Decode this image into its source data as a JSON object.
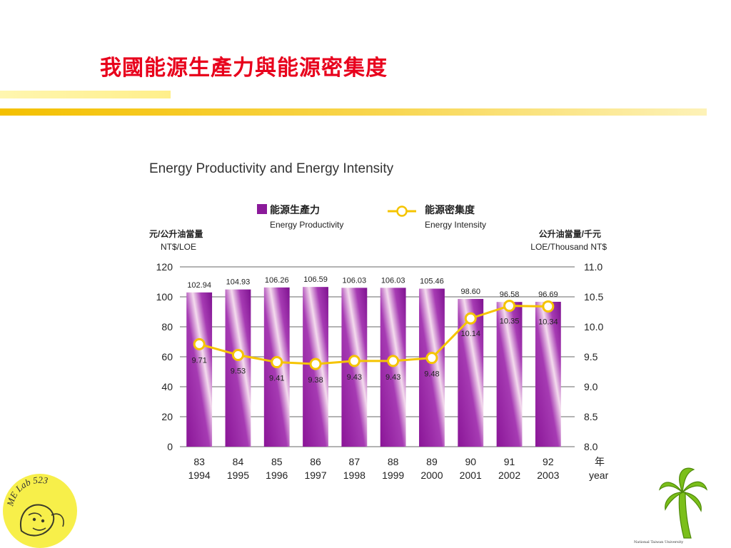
{
  "slide": {
    "title": "我國能源生產力與能源密集度",
    "accent_color": "#e8001c",
    "stripe_color": "#f5c400"
  },
  "chart_data": {
    "type": "bar",
    "title": "Energy Productivity and Energy Intensity",
    "categories_roc": [
      "83",
      "84",
      "85",
      "86",
      "87",
      "88",
      "89",
      "90",
      "91",
      "92"
    ],
    "categories": [
      "1994",
      "1995",
      "1996",
      "1997",
      "1998",
      "1999",
      "2000",
      "2001",
      "2002",
      "2003"
    ],
    "x_unit_cn": "年",
    "x_unit_en": "year",
    "y_left": {
      "label_cn": "元/公升油當量",
      "label_en": "NT$/LOE",
      "ylim": [
        0,
        120
      ],
      "ticks": [
        "0",
        "20",
        "40",
        "60",
        "80",
        "100",
        "120"
      ]
    },
    "y_right": {
      "label_cn": "公升油當量/千元",
      "label_en": "LOE/Thousand NT$",
      "ylim": [
        8.0,
        11.0
      ],
      "ticks": [
        "8.0",
        "8.5",
        "9.0",
        "9.5",
        "10.0",
        "10.5",
        "11.0"
      ]
    },
    "grid": true,
    "legend_position": "top",
    "series": [
      {
        "name": "Energy Productivity",
        "name_cn": "能源生產力",
        "kind": "bar",
        "axis": "left",
        "color": "#8b1a9a",
        "values": [
          102.94,
          104.93,
          106.26,
          106.59,
          106.03,
          106.03,
          105.46,
          98.6,
          96.58,
          96.69
        ],
        "labels": [
          "102.94",
          "104.93",
          "106.26",
          "106.59",
          "106.03",
          "106.03",
          "105.46",
          "98.60",
          "96.58",
          "96.69"
        ]
      },
      {
        "name": "Energy Intensity",
        "name_cn": "能源密集度",
        "kind": "line",
        "axis": "right",
        "color": "#f5c400",
        "values": [
          9.71,
          9.53,
          9.41,
          9.38,
          9.43,
          9.43,
          9.48,
          10.14,
          10.35,
          10.34
        ],
        "labels": [
          "9.71",
          "9.53",
          "9.41",
          "9.38",
          "9.43",
          "9.43",
          "9.48",
          "10.14",
          "10.35",
          "10.34"
        ]
      }
    ]
  },
  "logos": {
    "left_text": "ME Lab 523",
    "right_text": "National Taiwan University"
  }
}
